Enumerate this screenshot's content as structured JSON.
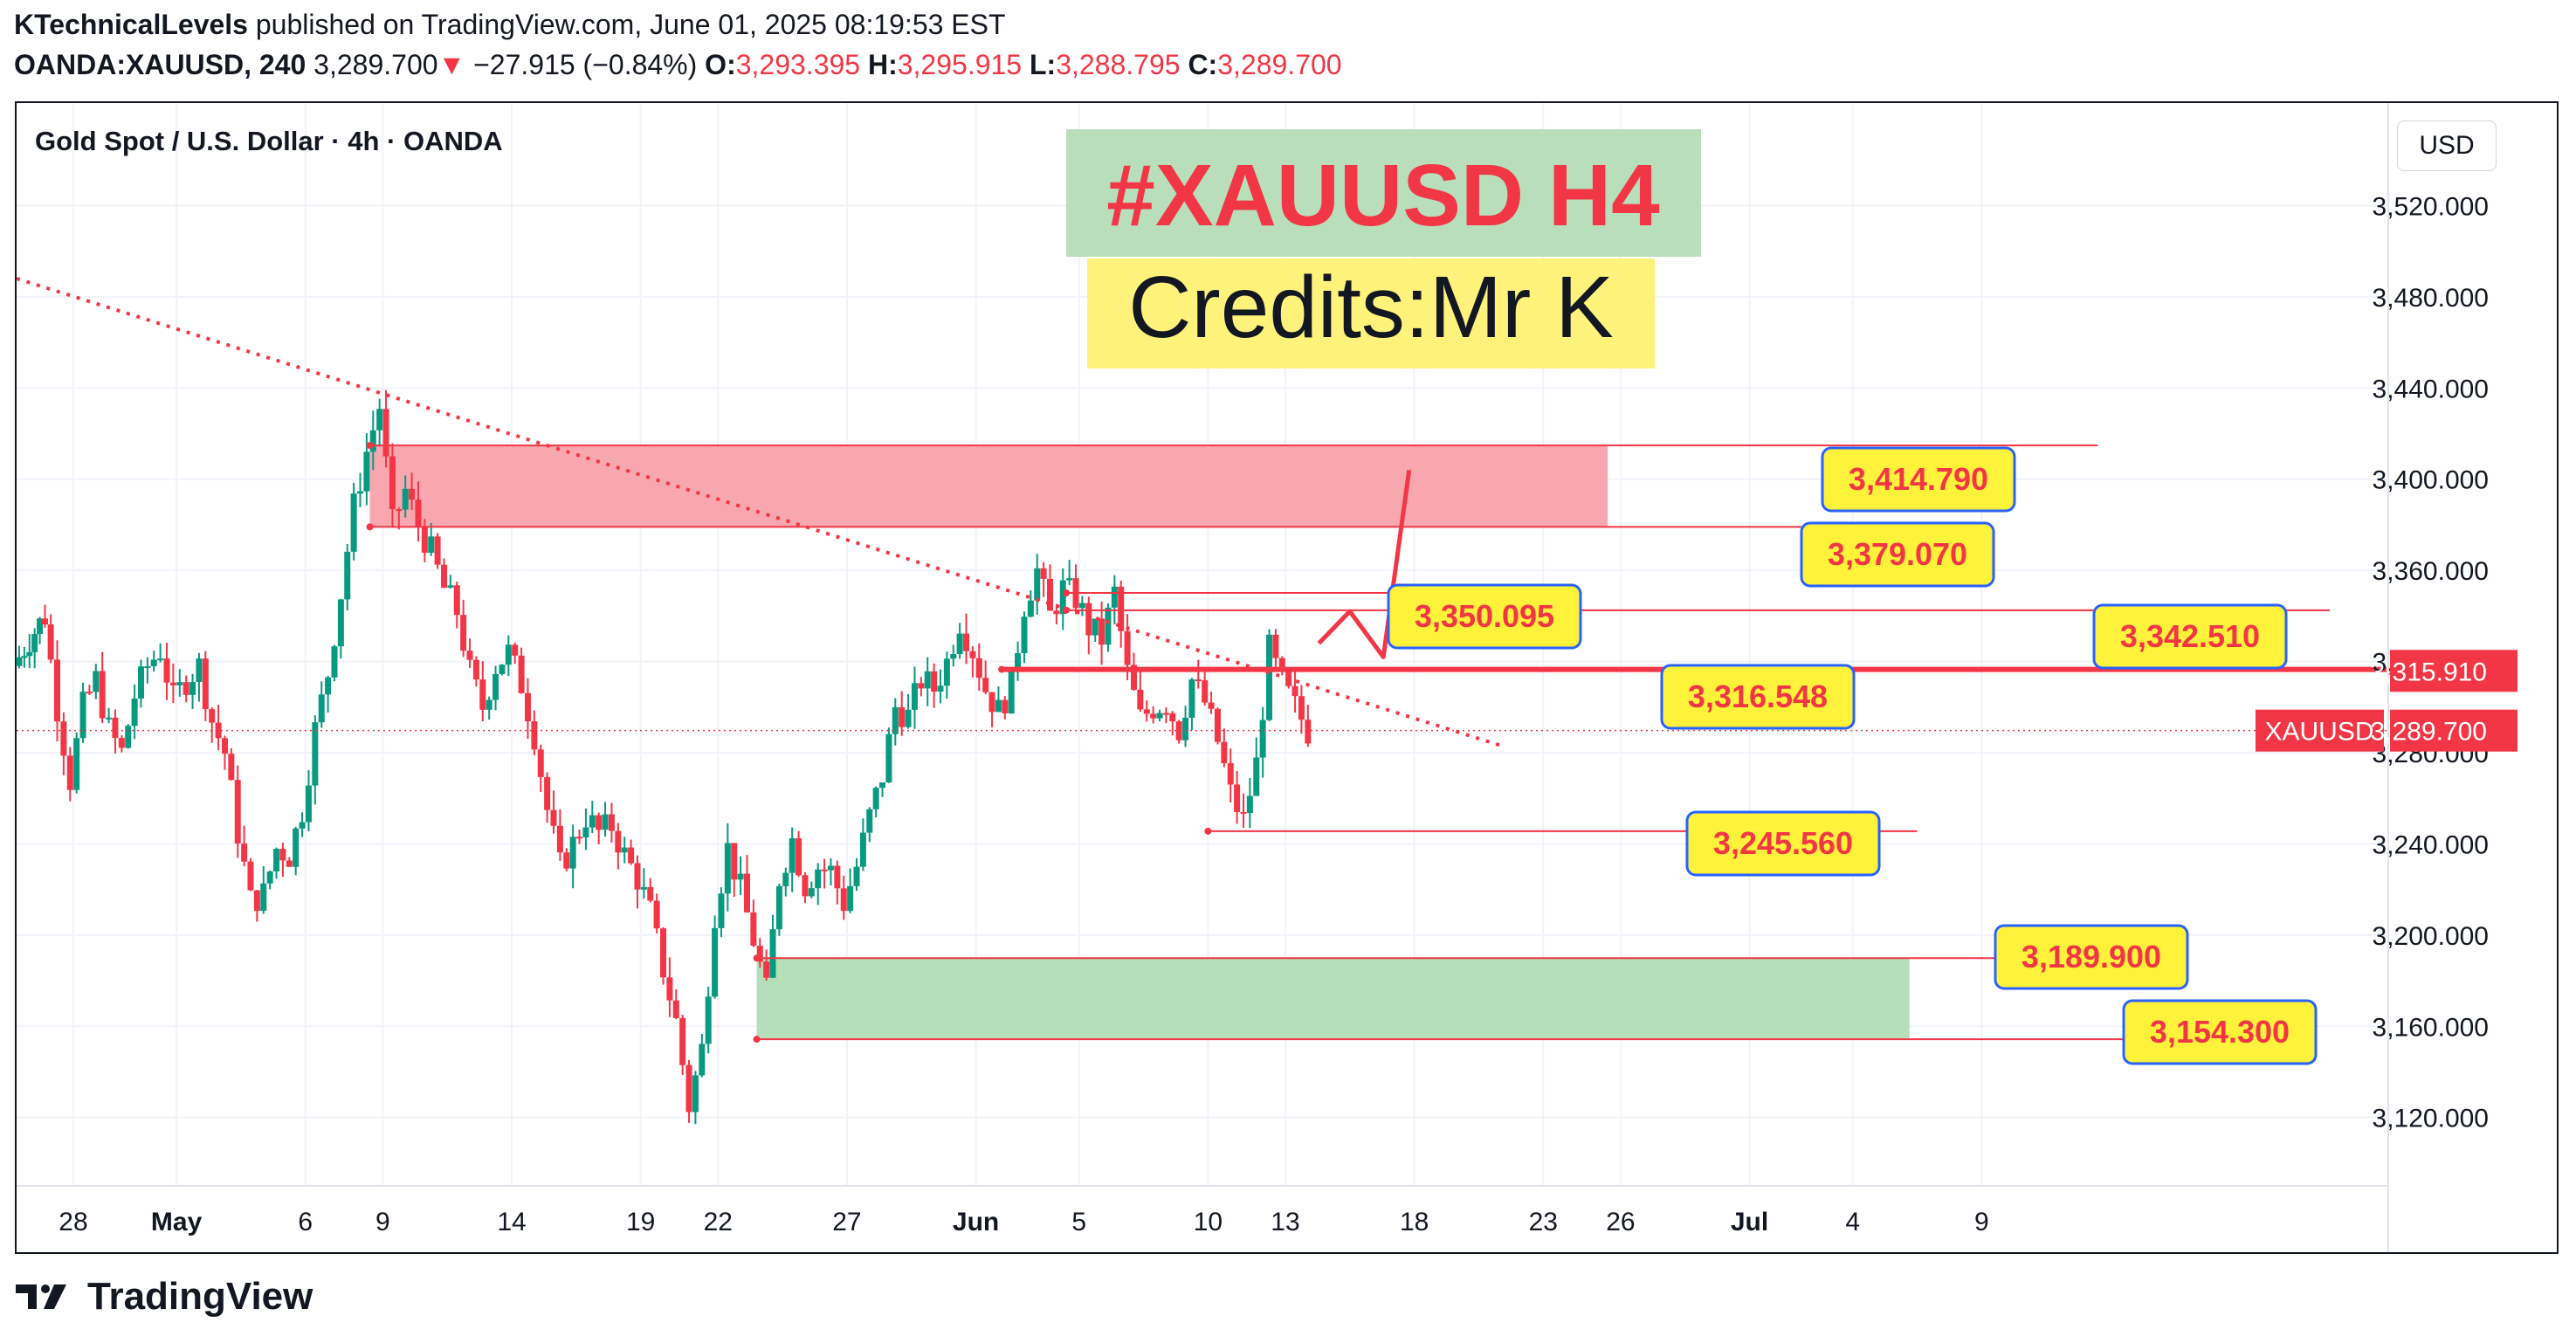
{
  "header": {
    "author": "KTechnicalLevels",
    "published": "published on TradingView.com, June 01, 2025 08:19:53 EST",
    "symbol": "OANDA:XAUUSD, 240",
    "last": "3,289.700",
    "arrow": "▼",
    "change": "−27.915 (−0.84%)",
    "o_label": "O:",
    "o": "3,293.395",
    "h_label": "H:",
    "h": "3,295.915",
    "l_label": "L:",
    "l": "3,288.795",
    "c_label": "C:",
    "c": "3,289.700"
  },
  "chart_title": "Gold Spot / U.S. Dollar · 4h · OANDA",
  "currency": "USD",
  "overlay": {
    "title": "#XAUUSD H4",
    "credits": "Credits:Mr K"
  },
  "footer": {
    "brand": "TradingView"
  },
  "colors": {
    "up": "#089981",
    "down": "#f23645",
    "red_zone": "#f7a7ad",
    "green_zone": "#b5dfb8",
    "label_fill": "#fff23a",
    "label_border": "#2962ff",
    "label_text": "#f23645",
    "title_bg": "#b9dfba",
    "credits_bg": "#fff27a"
  },
  "chart_data": {
    "type": "candlestick",
    "title": "Gold Spot / U.S. Dollar · 4h · OANDA",
    "currency": "USD",
    "y_ticks": [
      "3,120.000",
      "3,160.000",
      "3,200.000",
      "3,240.000",
      "3,280.000",
      "3,320.000",
      "3,360.000",
      "3,400.000",
      "3,440.000",
      "3,480.000",
      "3,520.000"
    ],
    "y_tick_values": [
      3120,
      3160,
      3200,
      3240,
      3280,
      3320,
      3360,
      3400,
      3440,
      3480,
      3520
    ],
    "ylim": [
      3090,
      3565
    ],
    "x_ticks": [
      "28",
      "May",
      "6",
      "9",
      "14",
      "19",
      "22",
      "27",
      "Jun",
      "5",
      "10",
      "13",
      "18",
      "23",
      "26",
      "Jul",
      "4",
      "9"
    ],
    "x_tick_days": [
      -3,
      1,
      6,
      9,
      14,
      19,
      22,
      27,
      32,
      36,
      41,
      44,
      49,
      54,
      57,
      62,
      66,
      71
    ],
    "x_range_days": [
      -5.2,
      86.7
    ],
    "x_unit": "days since Apr 30, 2025",
    "last_price": {
      "symbol": "XAUUSD",
      "value": 3289.7,
      "label": "3,289.700"
    },
    "line_price": {
      "value": 3315.91,
      "label": "3,315.910"
    },
    "candles_close_path": [
      [
        -5.2,
        3318
      ],
      [
        -4.6,
        3330
      ],
      [
        -4.0,
        3340
      ],
      [
        -3.5,
        3300
      ],
      [
        -3.0,
        3268
      ],
      [
        -2.5,
        3300
      ],
      [
        -2.0,
        3312
      ],
      [
        -1.5,
        3290
      ],
      [
        -1.0,
        3280
      ],
      [
        -0.5,
        3305
      ],
      [
        0.0,
        3318
      ],
      [
        0.5,
        3325
      ],
      [
        1.0,
        3303
      ],
      [
        1.5,
        3312
      ],
      [
        2.0,
        3318
      ],
      [
        2.5,
        3294
      ],
      [
        3.0,
        3280
      ],
      [
        3.5,
        3245
      ],
      [
        4.0,
        3215
      ],
      [
        4.5,
        3218
      ],
      [
        5.0,
        3238
      ],
      [
        5.5,
        3235
      ],
      [
        6.0,
        3255
      ],
      [
        6.5,
        3290
      ],
      [
        7.0,
        3315
      ],
      [
        7.5,
        3350
      ],
      [
        8.0,
        3388
      ],
      [
        8.5,
        3412
      ],
      [
        9.0,
        3432
      ],
      [
        9.5,
        3380
      ],
      [
        10.0,
        3395
      ],
      [
        10.5,
        3380
      ],
      [
        11.0,
        3368
      ],
      [
        11.5,
        3352
      ],
      [
        12.0,
        3342
      ],
      [
        12.5,
        3315
      ],
      [
        13.0,
        3300
      ],
      [
        13.5,
        3318
      ],
      [
        14.0,
        3324
      ],
      [
        14.5,
        3310
      ],
      [
        15.0,
        3288
      ],
      [
        15.5,
        3255
      ],
      [
        16.0,
        3230
      ],
      [
        16.5,
        3240
      ],
      [
        17.0,
        3252
      ],
      [
        17.5,
        3245
      ],
      [
        18.0,
        3248
      ],
      [
        18.5,
        3235
      ],
      [
        19.0,
        3225
      ],
      [
        19.5,
        3210
      ],
      [
        20.0,
        3185
      ],
      [
        20.5,
        3162
      ],
      [
        21.0,
        3125
      ],
      [
        21.5,
        3150
      ],
      [
        22.0,
        3210
      ],
      [
        22.5,
        3238
      ],
      [
        23.0,
        3220
      ],
      [
        23.5,
        3198
      ],
      [
        24.0,
        3175
      ],
      [
        24.5,
        3225
      ],
      [
        25.0,
        3242
      ],
      [
        25.5,
        3222
      ],
      [
        26.0,
        3230
      ],
      [
        26.5,
        3228
      ],
      [
        27.0,
        3214
      ],
      [
        27.5,
        3230
      ],
      [
        28.0,
        3252
      ],
      [
        28.5,
        3270
      ],
      [
        29.0,
        3300
      ],
      [
        29.5,
        3296
      ],
      [
        30.0,
        3312
      ],
      [
        30.5,
        3308
      ],
      [
        31.0,
        3320
      ],
      [
        31.5,
        3338
      ],
      [
        32.0,
        3325
      ],
      [
        32.5,
        3308
      ],
      [
        33.0,
        3298
      ],
      [
        33.5,
        3310
      ],
      [
        34.0,
        3345
      ],
      [
        34.5,
        3360
      ],
      [
        35.0,
        3340
      ],
      [
        35.5,
        3352
      ],
      [
        36.0,
        3348
      ],
      [
        36.5,
        3335
      ],
      [
        37.0,
        3330
      ],
      [
        37.5,
        3350
      ],
      [
        38.0,
        3315
      ],
      [
        38.5,
        3295
      ],
      [
        39.0,
        3300
      ],
      [
        39.5,
        3302
      ],
      [
        40.0,
        3290
      ],
      [
        40.5,
        3312
      ],
      [
        41.0,
        3302
      ],
      [
        41.5,
        3285
      ],
      [
        42.0,
        3262
      ],
      [
        42.5,
        3250
      ],
      [
        43.0,
        3275
      ],
      [
        43.5,
        3325
      ],
      [
        44.0,
        3310
      ],
      [
        44.5,
        3300
      ],
      [
        45.0,
        3289.7
      ]
    ],
    "zones": [
      {
        "kind": "resistance",
        "from": 3379.07,
        "to": 3414.79,
        "x_start": 8.5,
        "x_end": 56.5
      },
      {
        "kind": "support",
        "from": 3154.3,
        "to": 3189.9,
        "x_start": 23.5,
        "x_end": 68.2
      }
    ],
    "levels": [
      {
        "value": 3414.79,
        "label": "3,414.790",
        "x_start": 8.5,
        "x_end": 75.5
      },
      {
        "value": 3379.07,
        "label": "3,379.070",
        "x_start": 8.5,
        "x_end": 69.5
      },
      {
        "value": 3350.095,
        "label": "3,350.095",
        "x_start": 35.5,
        "x_end": 55.5
      },
      {
        "value": 3342.51,
        "label": "3,342.510",
        "x_start": 35.5,
        "x_end": 84.5
      },
      {
        "value": 3316.548,
        "label": "3,316.548",
        "x_start": 33.0,
        "x_end": 86.7
      },
      {
        "value": 3245.56,
        "label": "3,245.560",
        "x_start": 41.0,
        "x_end": 68.5
      },
      {
        "value": 3189.9,
        "label": "3,189.900",
        "x_start": 23.5,
        "x_end": 76.2
      },
      {
        "value": 3154.3,
        "label": "3,154.300",
        "x_start": 23.5,
        "x_end": 80.8
      }
    ],
    "trendline": {
      "from": [
        -5.2,
        3488
      ],
      "to": [
        52.4,
        3283
      ],
      "style": "dotted"
    },
    "projection_path": [
      [
        45.3,
        3328
      ],
      [
        46.5,
        3342
      ],
      [
        47.8,
        3322
      ],
      [
        48.8,
        3404
      ]
    ]
  }
}
